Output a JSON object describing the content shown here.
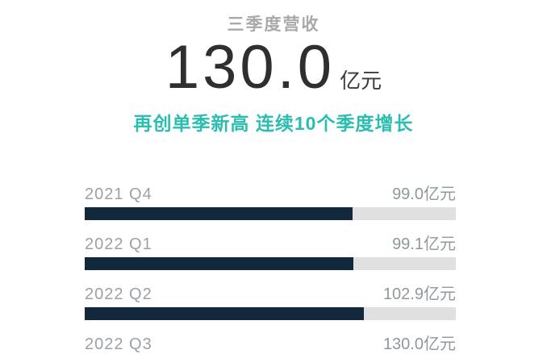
{
  "header": {
    "title": "三季度营收",
    "big_number": "130.0",
    "big_unit": "亿元",
    "subtitle": "再创单季新高  连续10个季度增长"
  },
  "colors": {
    "accent_teal_text": "#2abdb0",
    "bar_navy": "#12293d",
    "bar_teal": "#2fc2b5",
    "track_gray": "#e0e0e0",
    "label_gray": "#9ba1a6",
    "big_number_dark": "#2f2f2f",
    "title_gray": "#9b9b9b"
  },
  "chart_data": {
    "type": "bar",
    "orientation": "horizontal",
    "title": "三季度营收 130.0亿元",
    "subtitle": "再创单季新高 连续10个季度增长",
    "categories": [
      "2021 Q4",
      "2022 Q1",
      "2022 Q2",
      "2022 Q3"
    ],
    "values": [
      99.0,
      99.1,
      102.9,
      130.0
    ],
    "value_labels": [
      "99.0亿元",
      "99.1亿元",
      "102.9亿元",
      "130.0亿元"
    ],
    "unit": "亿元",
    "xlim": [
      0,
      137
    ],
    "grid": false,
    "legend": false,
    "highlight_index": 3
  }
}
